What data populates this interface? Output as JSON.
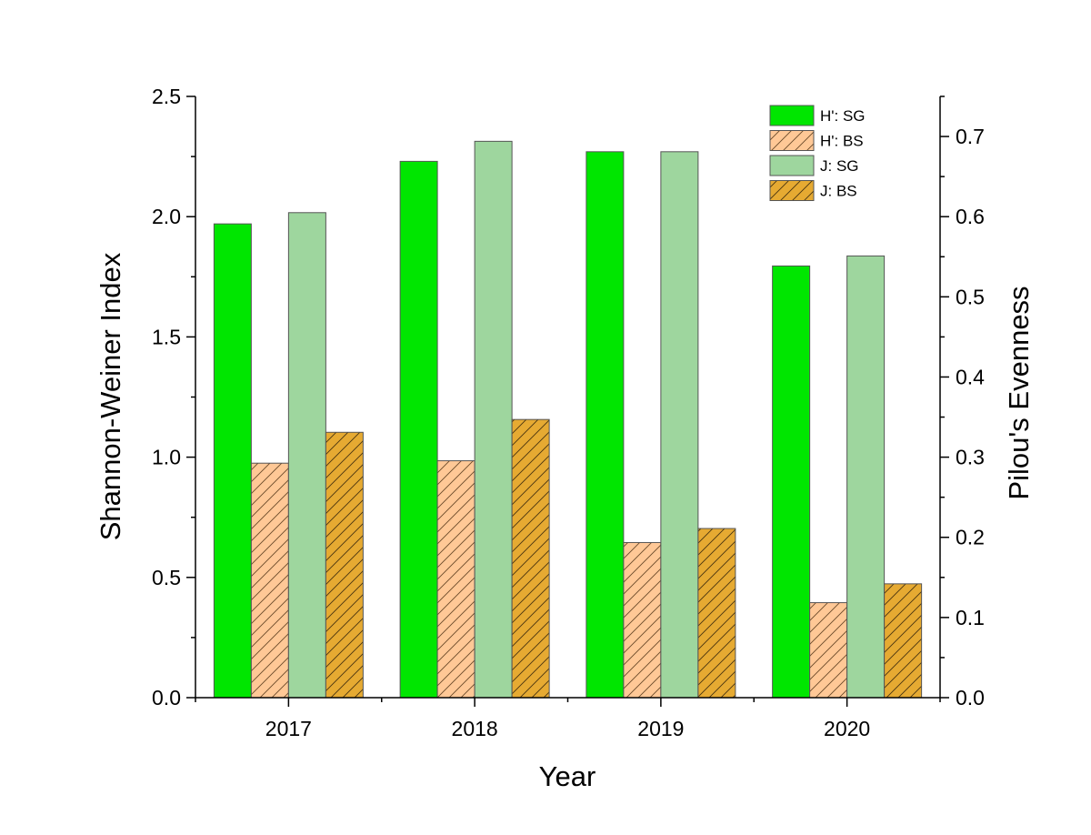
{
  "chart_data": {
    "type": "bar",
    "categories": [
      "2017",
      "2018",
      "2019",
      "2020"
    ],
    "xlabel": "Year",
    "ylabel": "Shannon-Weiner Index",
    "y2label": "Pilou's Evenness",
    "ylim": [
      0,
      2.5
    ],
    "y2lim": [
      0,
      0.75
    ],
    "yticks": [
      "0.0",
      "0.5",
      "1.0",
      "1.5",
      "2.0",
      "2.5"
    ],
    "y2ticks": [
      "0.0",
      "0.1",
      "0.2",
      "0.3",
      "0.4",
      "0.5",
      "0.6",
      "0.7"
    ],
    "legend_position": "top-right",
    "series": [
      {
        "name": "H': SG",
        "axis": "left",
        "values": [
          1.97,
          2.23,
          2.27,
          1.795
        ],
        "color": "#00e600",
        "pattern": "none"
      },
      {
        "name": "H': BS",
        "axis": "left",
        "values": [
          0.975,
          0.985,
          0.645,
          0.395
        ],
        "color": "#ffc896",
        "pattern": "hatch"
      },
      {
        "name": "J: SG",
        "axis": "right",
        "values": [
          0.605,
          0.694,
          0.681,
          0.551
        ],
        "color": "#9ed69e",
        "pattern": "none"
      },
      {
        "name": "J: BS",
        "axis": "right",
        "values": [
          0.331,
          0.347,
          0.211,
          0.142
        ],
        "color": "#e6aa32",
        "pattern": "hatch"
      }
    ]
  }
}
